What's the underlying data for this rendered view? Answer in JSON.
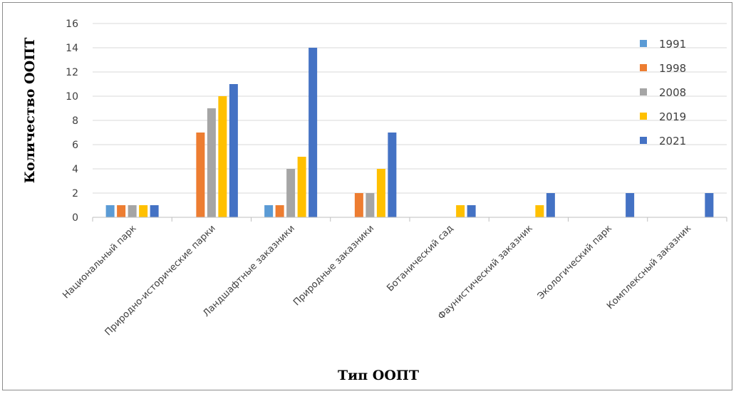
{
  "chart_data": {
    "type": "bar",
    "title": "",
    "xlabel": "Тип ООПТ",
    "ylabel": "Количество ООПТ",
    "ylim": [
      0,
      16
    ],
    "yticks": [
      0,
      2,
      4,
      6,
      8,
      10,
      12,
      14,
      16
    ],
    "grid": true,
    "legend_position": "top-right",
    "categories": [
      "Национальный парк",
      "Природно-исторические парки",
      "Ландшафтные заказники",
      "Природные заказники",
      "Ботанический сад",
      "Фаунистический заказник",
      "Экологический парк",
      "Комплексный заказник"
    ],
    "series": [
      {
        "name": "1991",
        "color": "#5B9BD5",
        "values": [
          1,
          0,
          1,
          0,
          0,
          0,
          0,
          0
        ]
      },
      {
        "name": "1998",
        "color": "#ED7D31",
        "values": [
          1,
          7,
          1,
          2,
          0,
          0,
          0,
          0
        ]
      },
      {
        "name": "2008",
        "color": "#A5A5A5",
        "values": [
          1,
          9,
          4,
          2,
          0,
          0,
          0,
          0
        ]
      },
      {
        "name": "2019",
        "color": "#FFC000",
        "values": [
          1,
          10,
          5,
          4,
          1,
          1,
          0,
          0
        ]
      },
      {
        "name": "2021",
        "color": "#4472C4",
        "values": [
          1,
          11,
          14,
          7,
          1,
          2,
          2,
          2
        ]
      }
    ]
  }
}
